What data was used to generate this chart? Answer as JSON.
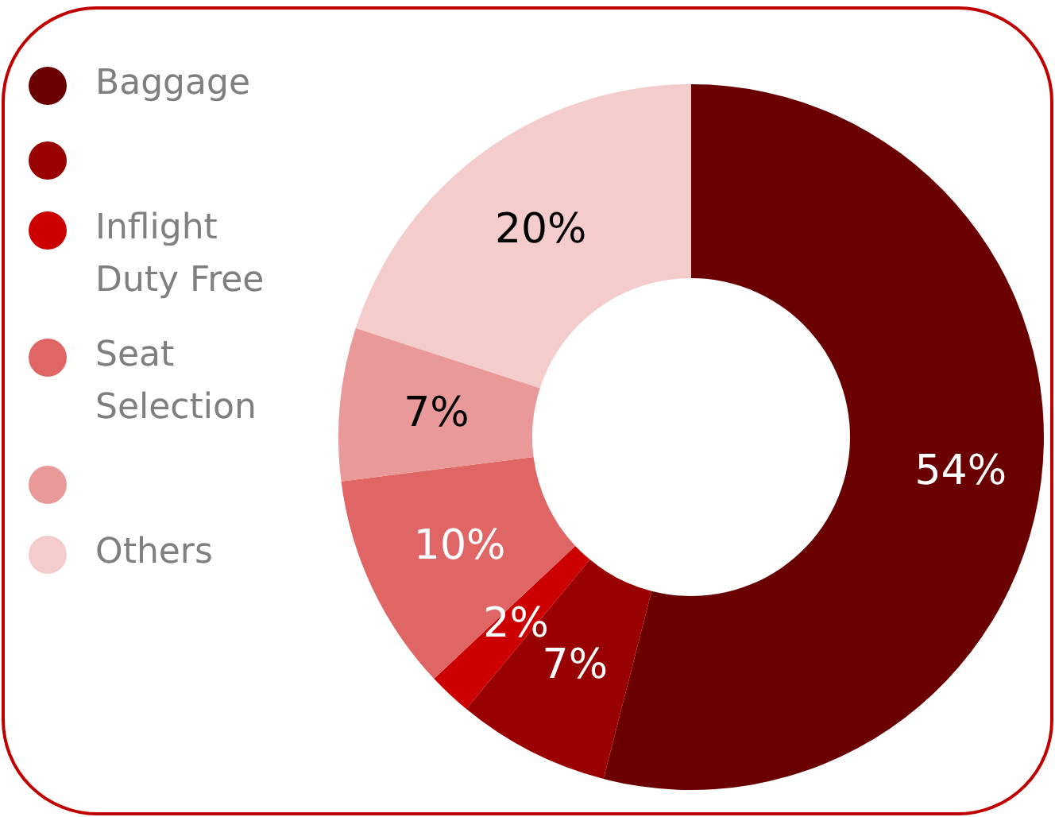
{
  "chart_data": {
    "type": "donut",
    "categories": [
      "Baggage",
      null,
      "Inflight Duty Free",
      "Seat Selection",
      null,
      "Others"
    ],
    "values": [
      54,
      7,
      2,
      10,
      7,
      20
    ],
    "value_labels": [
      "54%",
      "7%",
      "2%",
      "10%",
      "7%",
      "20%"
    ],
    "colors": [
      "#6b0000",
      "#990000",
      "#cc0000",
      "#e06666",
      "#ea9999",
      "#f4cccc"
    ],
    "legend": "left"
  }
}
